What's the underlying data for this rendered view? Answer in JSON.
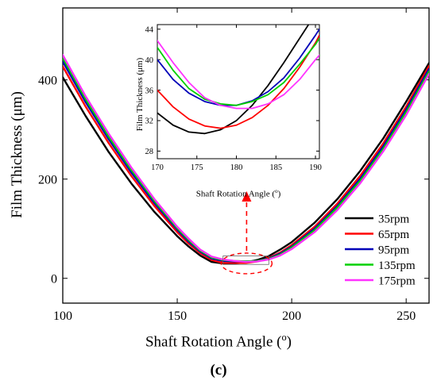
{
  "chart_data": [
    {
      "type": "line",
      "xlabel": "Shaft Rotation Angle (o)",
      "xlabel_text": "Shaft Rotation Angle (",
      "xlabel_sup": "o",
      "xlabel_end": ")",
      "ylabel": "Film Thickness (μm)",
      "xlim": [
        100,
        260
      ],
      "ylim": [
        -50,
        545
      ],
      "xticks": [
        100,
        150,
        200,
        250
      ],
      "yticks": [
        0,
        200,
        400
      ],
      "legend_position": "bottom-right",
      "grid": false,
      "x": [
        100,
        110,
        120,
        130,
        140,
        150,
        155,
        160,
        165,
        170,
        175,
        180,
        185,
        190,
        195,
        200,
        210,
        220,
        230,
        240,
        250,
        260
      ],
      "series": [
        {
          "name": "35rpm",
          "color": "#000000",
          "values": [
            405,
            327,
            255,
            191,
            134,
            85,
            64,
            46,
            33,
            30,
            30,
            32,
            37,
            45,
            58,
            73,
            112,
            160,
            217,
            282,
            356,
            434
          ]
        },
        {
          "name": "65rpm",
          "color": "#ff0000",
          "values": [
            427,
            346,
            273,
            206,
            146,
            93,
            70,
            51,
            37,
            31,
            31,
            31,
            34,
            41,
            52,
            67,
            104,
            151,
            207,
            272,
            346,
            428
          ]
        },
        {
          "name": "95rpm",
          "color": "#0000b8",
          "values": [
            437,
            355,
            281,
            213,
            152,
            98,
            74,
            54,
            40,
            35,
            34,
            34,
            35,
            40,
            50,
            64,
            100,
            146,
            201,
            266,
            340,
            422
          ]
        },
        {
          "name": "135rpm",
          "color": "#00d000",
          "values": [
            444,
            361,
            286,
            218,
            156,
            101,
            77,
            56,
            42,
            37,
            35,
            34,
            35,
            39,
            48,
            62,
            97,
            143,
            197,
            261,
            335,
            417
          ]
        },
        {
          "name": "175rpm",
          "color": "#ff33ff",
          "values": [
            450,
            367,
            292,
            223,
            160,
            104,
            80,
            58,
            44,
            38,
            35,
            33,
            34,
            38,
            46,
            59,
            93,
            138,
            192,
            256,
            329,
            412
          ]
        }
      ]
    },
    {
      "type": "line",
      "xlabel": "Shaft Rotation Angle (o)",
      "xlabel_text": "Shaft Rotation Angle (",
      "xlabel_sup": "o",
      "xlabel_end": ")",
      "ylabel": "Film Thickness (μm)",
      "xlim": [
        170,
        190.5
      ],
      "ylim": [
        27,
        44.6
      ],
      "xticks": [
        170,
        175,
        180,
        185,
        190
      ],
      "yticks": [
        28,
        32,
        36,
        40,
        44
      ],
      "grid": false,
      "x": [
        170,
        172,
        174,
        176,
        178,
        180,
        182,
        184,
        186,
        188,
        190,
        190.5
      ],
      "series": [
        {
          "name": "35rpm",
          "color": "#000000",
          "values": [
            33.0,
            31.4,
            30.5,
            30.3,
            30.8,
            32.0,
            34.0,
            36.6,
            39.6,
            42.8,
            46.0,
            47.0
          ]
        },
        {
          "name": "65rpm",
          "color": "#ff0000",
          "values": [
            36.0,
            33.8,
            32.2,
            31.3,
            31.0,
            31.4,
            32.4,
            34.0,
            36.2,
            39.0,
            42.2,
            43.2
          ]
        },
        {
          "name": "95rpm",
          "color": "#0000b8",
          "values": [
            40.0,
            37.4,
            35.6,
            34.5,
            34.0,
            34.0,
            34.6,
            35.8,
            37.6,
            40.2,
            43.2,
            44.0
          ]
        },
        {
          "name": "135rpm",
          "color": "#00d000",
          "values": [
            41.6,
            38.6,
            36.2,
            34.8,
            34.2,
            34.0,
            34.5,
            35.4,
            37.0,
            39.4,
            42.0,
            42.8
          ]
        },
        {
          "name": "175rpm",
          "color": "#ff33ff",
          "values": [
            42.5,
            39.6,
            37.0,
            35.0,
            34.0,
            33.6,
            33.6,
            34.2,
            35.4,
            37.4,
            40.0,
            40.6
          ]
        }
      ]
    }
  ],
  "panel_label": "(c)"
}
